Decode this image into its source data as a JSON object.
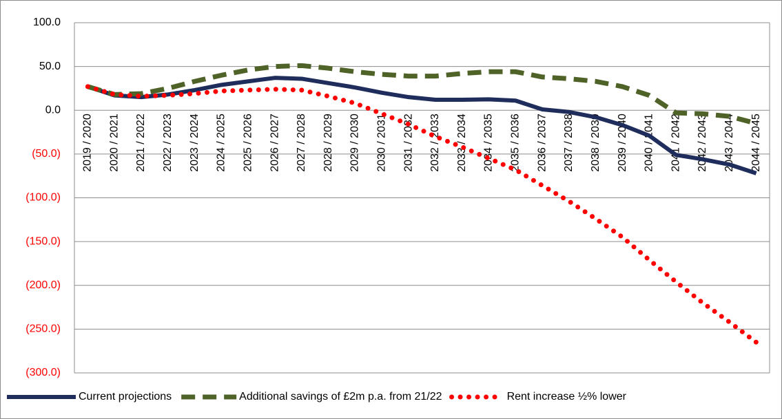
{
  "chart_data": {
    "type": "line",
    "categories": [
      "2019 / 2020",
      "2020 / 2021",
      "2021 / 2022",
      "2022 / 2023",
      "2023 / 2024",
      "2024 / 2025",
      "2025 / 2026",
      "2026 / 2027",
      "2027 / 2028",
      "2028 / 2029",
      "2029 / 2030",
      "2030 / 2031",
      "2031 / 2032",
      "2032 / 2033",
      "2033 / 2034",
      "2034 / 2035",
      "2035 / 2036",
      "2036 / 2037",
      "2037 / 2038",
      "2038 / 2039",
      "2039 / 2040",
      "2040 / 2041",
      "2041 / 2042",
      "2042 / 2043",
      "2043 / 2044",
      "2044 / 2045"
    ],
    "series": [
      {
        "name": "Current projections",
        "color": "#1f2d5c",
        "style": "solid",
        "values": [
          27,
          17,
          15,
          18,
          23,
          29,
          33,
          37,
          36,
          31,
          26,
          20,
          15,
          12,
          12,
          12.5,
          11,
          1,
          -2,
          -8,
          -17,
          -29,
          -51,
          -56,
          -62,
          -72
        ]
      },
      {
        "name": "Additional savings of £2m p.a. from 21/22",
        "color": "#4f6228",
        "style": "dashed",
        "values": [
          27,
          18,
          19,
          25,
          33,
          40,
          46,
          50,
          51,
          48,
          44,
          41,
          39,
          39,
          42,
          44,
          44,
          38,
          36,
          33,
          27,
          17,
          -3,
          -4,
          -7,
          -15
        ]
      },
      {
        "name": "Rent increase ½% lower",
        "color": "#ff0000",
        "style": "dotted",
        "values": [
          27,
          18,
          16,
          17,
          19,
          22,
          23,
          24,
          23,
          16,
          8,
          -4,
          -16,
          -30,
          -42,
          -55,
          -68,
          -86,
          -104,
          -124,
          -145,
          -171,
          -196,
          -220,
          -242,
          -265
        ]
      }
    ],
    "ylim": [
      -300,
      100
    ],
    "yticks": [
      {
        "value": -300,
        "label": "(300.0)"
      },
      {
        "value": -250,
        "label": "(250.0)"
      },
      {
        "value": -200,
        "label": "(200.0)"
      },
      {
        "value": -150,
        "label": "(150.0)"
      },
      {
        "value": -100,
        "label": "(100.0)"
      },
      {
        "value": -50,
        "label": "(50.0)"
      },
      {
        "value": 0,
        "label": "0.0"
      },
      {
        "value": 50,
        "label": "50.0"
      },
      {
        "value": 100,
        "label": "100.0"
      }
    ],
    "negative_label_color": "#ff0000",
    "grid": true,
    "legend": "bottom"
  }
}
